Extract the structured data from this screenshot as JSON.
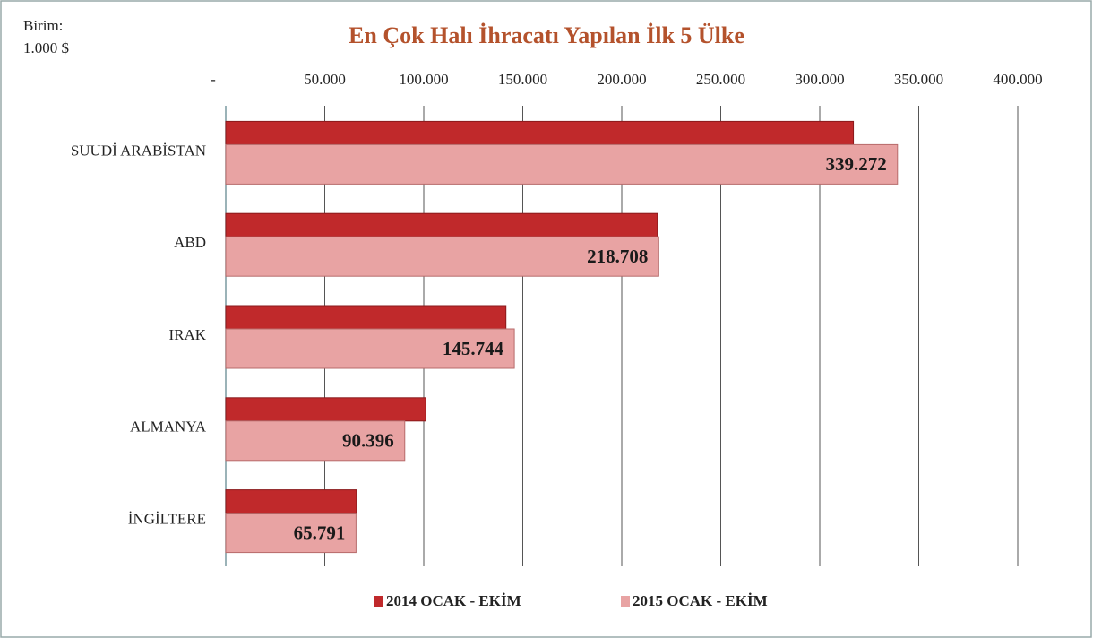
{
  "chart_data": {
    "type": "bar",
    "orientation": "horizontal",
    "title": "En Çok Halı İhracatı Yapılan İlk 5 Ülke",
    "unit_label": [
      "Birim:",
      "1.000 $"
    ],
    "categories": [
      "SUUDİ ARABİSTAN",
      "ABD",
      "IRAK",
      "ALMANYA",
      "İNGİLTERE"
    ],
    "series": [
      {
        "name": "2014 OCAK - EKİM",
        "color": "#c0292b",
        "values": [
          317000,
          218000,
          141500,
          101000,
          66000
        ]
      },
      {
        "name": "2015 OCAK - EKİM",
        "color": "#e8a3a3",
        "values": [
          339272,
          218708,
          145744,
          90396,
          65791
        ],
        "value_labels": [
          "339.272",
          "218.708",
          "145.744",
          "90.396",
          "65.791"
        ]
      }
    ],
    "xlim": [
      0,
      400000
    ],
    "xticks": [
      {
        "value": 0,
        "label": "-"
      },
      {
        "value": 50000,
        "label": "50.000"
      },
      {
        "value": 100000,
        "label": "100.000"
      },
      {
        "value": 150000,
        "label": "150.000"
      },
      {
        "value": 200000,
        "label": "200.000"
      },
      {
        "value": 250000,
        "label": "250.000"
      },
      {
        "value": 300000,
        "label": "300.000"
      },
      {
        "value": 350000,
        "label": "350.000"
      },
      {
        "value": 400000,
        "label": "400.000"
      }
    ],
    "grid": true,
    "legend": "bottom"
  }
}
